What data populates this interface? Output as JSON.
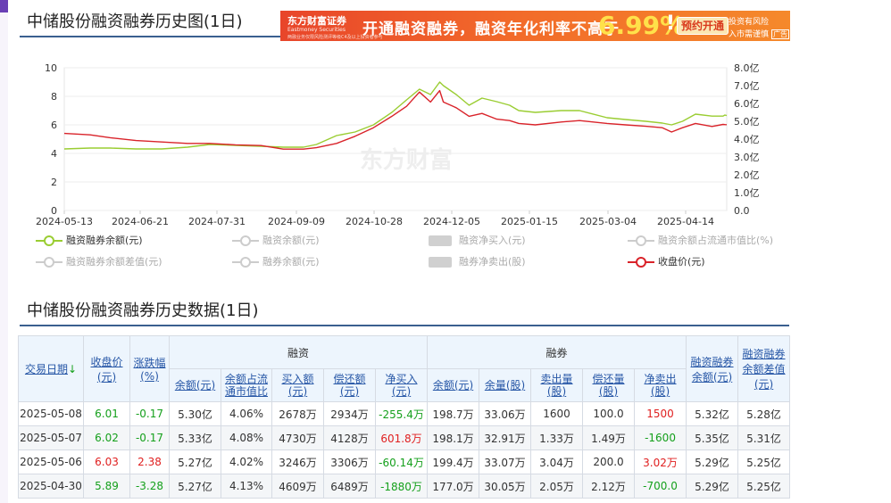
{
  "page": {
    "chart_title": "中储股份融资融券历史图(1日)",
    "table_title": "中储股份融资融券历史数据(1日)"
  },
  "ad": {
    "brand": "东方财富证券",
    "brand_en": "Eastmoney Securities",
    "disclaimer": "两融业务仅限风险测评等级C4及以上投资者参与",
    "headline": "开通融资融券，融资年化利率不高于",
    "rate": "6.99%",
    "excl": "!",
    "button": "预约开通",
    "risk_1": "投资有风险",
    "risk_2": "入市需谨慎",
    "tag": "广告"
  },
  "watermark": "东方财富",
  "colors": {
    "green": "#9acd32",
    "red": "#d9232a",
    "header_bg": "#edf5fd",
    "title_rule": "#3a5f8f"
  },
  "chart_data": {
    "type": "line",
    "x_tick_labels": [
      "2024-05-13",
      "2024-06-21",
      "2024-07-31",
      "2024-09-09",
      "2024-10-28",
      "2024-12-05",
      "2025-01-15",
      "2025-03-04",
      "2025-04-14"
    ],
    "left_axis": {
      "ticks": [
        "0",
        "2",
        "4",
        "6",
        "8",
        "10"
      ],
      "range": [
        0,
        10
      ]
    },
    "right_axis": {
      "ticks": [
        "0.0",
        "1.0亿",
        "2.0亿",
        "3.0亿",
        "4.0亿",
        "5.0亿",
        "6.0亿",
        "7.0亿",
        "8.0亿"
      ],
      "range": [
        0,
        8
      ]
    },
    "x": [
      "2024-05-13",
      "2024-05-27",
      "2024-06-07",
      "2024-06-21",
      "2024-07-05",
      "2024-07-19",
      "2024-07-31",
      "2024-08-14",
      "2024-08-28",
      "2024-09-09",
      "2024-09-20",
      "2024-09-27",
      "2024-10-08",
      "2024-10-18",
      "2024-10-28",
      "2024-11-07",
      "2024-11-15",
      "2024-11-22",
      "2024-11-28",
      "2024-12-03",
      "2024-12-05",
      "2024-12-12",
      "2024-12-19",
      "2024-12-26",
      "2025-01-03",
      "2025-01-10",
      "2025-01-15",
      "2025-01-24",
      "2025-02-07",
      "2025-02-17",
      "2025-03-04",
      "2025-03-14",
      "2025-03-25",
      "2025-04-03",
      "2025-04-08",
      "2025-04-14",
      "2025-04-21",
      "2025-04-30",
      "2025-05-06",
      "2025-05-07",
      "2025-05-08"
    ],
    "series": [
      {
        "name": "融资融券余额(元)",
        "axis": "right",
        "color": "#9acd32",
        "values": [
          3.45,
          3.5,
          3.5,
          3.45,
          3.45,
          3.55,
          3.7,
          3.65,
          3.6,
          3.55,
          3.55,
          3.7,
          4.2,
          4.4,
          4.8,
          5.5,
          6.2,
          6.8,
          6.5,
          7.2,
          7.0,
          6.5,
          5.9,
          6.3,
          6.1,
          5.9,
          5.6,
          5.5,
          5.6,
          5.6,
          5.2,
          5.1,
          5.0,
          4.9,
          4.8,
          5.0,
          5.4,
          5.29,
          5.29,
          5.35,
          5.32
        ]
      },
      {
        "name": "收盘价(元)",
        "axis": "left",
        "color": "#d9232a",
        "values": [
          5.4,
          5.3,
          5.1,
          4.9,
          4.8,
          4.7,
          4.7,
          4.6,
          4.55,
          4.3,
          4.3,
          4.4,
          4.7,
          5.2,
          5.8,
          6.6,
          7.3,
          8.3,
          7.6,
          8.4,
          7.6,
          7.2,
          6.6,
          6.8,
          6.4,
          6.3,
          6.1,
          6.0,
          6.2,
          6.3,
          6.1,
          6.0,
          5.9,
          5.8,
          5.5,
          5.8,
          6.1,
          5.89,
          6.03,
          6.02,
          6.01
        ]
      }
    ],
    "legend": [
      {
        "label": "融资融券余额(元)",
        "active": true,
        "marker": "line-dot",
        "color": "#9acd32"
      },
      {
        "label": "融资余额(元)",
        "active": false,
        "marker": "line-dot"
      },
      {
        "label": "融资净买入(元)",
        "active": false,
        "marker": "rect"
      },
      {
        "label": "融资余额占流通市值比(%)",
        "active": false,
        "marker": "line-dot"
      },
      {
        "label": "融资融券余额差值(元)",
        "active": false,
        "marker": "line-dot"
      },
      {
        "label": "融券余额(元)",
        "active": false,
        "marker": "line-dot"
      },
      {
        "label": "融券净卖出(股)",
        "active": false,
        "marker": "rect"
      },
      {
        "label": "收盘价(元)",
        "active": true,
        "marker": "line-dot",
        "color": "#d9232a"
      }
    ],
    "grid": "horizontal"
  },
  "table": {
    "group_financing": "融资",
    "group_lending": "融券",
    "headers": {
      "date": "交易日期",
      "date_arrow": "↓",
      "close": "收盘价(元)",
      "change": "涨跌幅(%)",
      "fin_balance": "余额(元)",
      "fin_ratio": "余额占流通市值比",
      "fin_buy": "买入额(元)",
      "fin_repay": "偿还额(元)",
      "fin_net": "净买入(元)",
      "sec_balance": "余额(元)",
      "sec_volume": "余量(股)",
      "sec_sell": "卖出量(股)",
      "sec_repay": "偿还量(股)",
      "sec_net": "净卖出(股)",
      "total": "融资融券余额(元)",
      "diff": "融资融券余额差值(元)"
    },
    "rows": [
      [
        "2025-05-08",
        "6.01",
        "-0.17",
        "5.30亿",
        "4.06%",
        "2678万",
        "2934万",
        "-255.4万",
        "198.7万",
        "33.06万",
        "1600",
        "100.0",
        "1500",
        "5.32亿",
        "5.28亿"
      ],
      [
        "2025-05-07",
        "6.02",
        "-0.17",
        "5.33亿",
        "4.08%",
        "4730万",
        "4128万",
        "601.8万",
        "198.1万",
        "32.91万",
        "1.33万",
        "1.49万",
        "-1600",
        "5.35亿",
        "5.31亿"
      ],
      [
        "2025-05-06",
        "6.03",
        "2.38",
        "5.27亿",
        "4.02%",
        "3246万",
        "3306万",
        "-60.14万",
        "199.4万",
        "33.07万",
        "3.04万",
        "200.0",
        "3.02万",
        "5.29亿",
        "5.25亿"
      ],
      [
        "2025-04-30",
        "5.89",
        "-3.28",
        "5.27亿",
        "4.13%",
        "4609万",
        "6489万",
        "-1880万",
        "177.0万",
        "30.05万",
        "2.05万",
        "2.12万",
        "-700.0",
        "5.29亿",
        "5.25亿"
      ]
    ],
    "row_colors": [
      [
        "k",
        "g",
        "g",
        "k",
        "k",
        "k",
        "k",
        "g",
        "k",
        "k",
        "k",
        "k",
        "r",
        "k",
        "k"
      ],
      [
        "k",
        "g",
        "g",
        "k",
        "k",
        "k",
        "k",
        "r",
        "k",
        "k",
        "k",
        "k",
        "g",
        "k",
        "k"
      ],
      [
        "k",
        "r",
        "r",
        "k",
        "k",
        "k",
        "k",
        "g",
        "k",
        "k",
        "k",
        "k",
        "r",
        "k",
        "k"
      ],
      [
        "k",
        "g",
        "g",
        "k",
        "k",
        "k",
        "k",
        "g",
        "k",
        "k",
        "k",
        "k",
        "g",
        "k",
        "k"
      ]
    ]
  }
}
